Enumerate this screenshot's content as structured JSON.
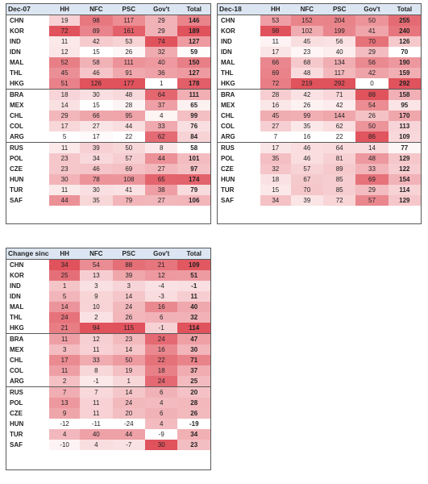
{
  "colors": {
    "header_bg": "#dce6f2",
    "heat_low": "#ffffff",
    "heat_high": "#e0525c",
    "border": "#5a5a5a"
  },
  "tables": [
    {
      "id": "dec07",
      "title": "Dec-07",
      "columns": [
        "HH",
        "NFC",
        "PSC",
        "Gov't",
        "Total"
      ],
      "groups": [
        [
          {
            "country": "CHN",
            "values": [
              19,
              98,
              117,
              29,
              146
            ]
          },
          {
            "country": "KOR",
            "values": [
              72,
              89,
              161,
              29,
              189
            ]
          },
          {
            "country": "IND",
            "values": [
              11,
              42,
              53,
              74,
              127
            ]
          },
          {
            "country": "IDN",
            "values": [
              12,
              15,
              26,
              32,
              59
            ]
          },
          {
            "country": "MAL",
            "values": [
              52,
              58,
              111,
              40,
              150
            ]
          },
          {
            "country": "THL",
            "values": [
              45,
              46,
              91,
              36,
              127
            ]
          },
          {
            "country": "HKG",
            "values": [
              51,
              126,
              177,
              1,
              178
            ]
          }
        ],
        [
          {
            "country": "BRA",
            "values": [
              18,
              30,
              48,
              64,
              111
            ]
          },
          {
            "country": "MEX",
            "values": [
              14,
              15,
              28,
              37,
              65
            ]
          },
          {
            "country": "CHL",
            "values": [
              29,
              66,
              95,
              4,
              99
            ]
          },
          {
            "country": "COL",
            "values": [
              17,
              27,
              44,
              33,
              76
            ]
          },
          {
            "country": "ARG",
            "values": [
              5,
              17,
              22,
              62,
              84
            ]
          }
        ],
        [
          {
            "country": "RUS",
            "values": [
              11,
              39,
              50,
              8,
              58
            ]
          },
          {
            "country": "POL",
            "values": [
              23,
              34,
              57,
              44,
              101
            ]
          },
          {
            "country": "CZE",
            "values": [
              23,
              46,
              69,
              27,
              97
            ]
          },
          {
            "country": "HUN",
            "values": [
              30,
              78,
              108,
              65,
              174
            ]
          },
          {
            "country": "TUR",
            "values": [
              11,
              30,
              41,
              38,
              79
            ]
          },
          {
            "country": "SAF",
            "values": [
              44,
              35,
              79,
              27,
              106
            ]
          }
        ]
      ]
    },
    {
      "id": "dec18",
      "title": "Dec-18",
      "columns": [
        "HH",
        "NFC",
        "PSC",
        "Gov't",
        "Total"
      ],
      "groups": [
        [
          {
            "country": "CHN",
            "values": [
              53,
              152,
              204,
              50,
              255
            ]
          },
          {
            "country": "KOR",
            "values": [
              98,
              102,
              199,
              41,
              240
            ]
          },
          {
            "country": "IND",
            "values": [
              11,
              45,
              56,
              70,
              126
            ]
          },
          {
            "country": "IDN",
            "values": [
              17,
              23,
              40,
              29,
              70
            ]
          },
          {
            "country": "MAL",
            "values": [
              66,
              68,
              134,
              56,
              190
            ]
          },
          {
            "country": "THL",
            "values": [
              69,
              48,
              117,
              42,
              159
            ]
          },
          {
            "country": "HKG",
            "values": [
              72,
              219,
              292,
              0,
              292
            ]
          }
        ],
        [
          {
            "country": "BRA",
            "values": [
              28,
              42,
              71,
              88,
              158
            ]
          },
          {
            "country": "MEX",
            "values": [
              16,
              26,
              42,
              54,
              95
            ]
          },
          {
            "country": "CHL",
            "values": [
              45,
              99,
              144,
              26,
              170
            ]
          },
          {
            "country": "COL",
            "values": [
              27,
              35,
              62,
              50,
              113
            ]
          },
          {
            "country": "ARG",
            "values": [
              7,
              16,
              22,
              86,
              109
            ]
          }
        ],
        [
          {
            "country": "RUS",
            "values": [
              17,
              46,
              64,
              14,
              77
            ]
          },
          {
            "country": "POL",
            "values": [
              35,
              46,
              81,
              48,
              129
            ]
          },
          {
            "country": "CZE",
            "values": [
              32,
              57,
              89,
              33,
              122
            ]
          },
          {
            "country": "HUN",
            "values": [
              18,
              67,
              85,
              69,
              154
            ]
          },
          {
            "country": "TUR",
            "values": [
              15,
              70,
              85,
              29,
              114
            ]
          },
          {
            "country": "SAF",
            "values": [
              34,
              39,
              72,
              57,
              129
            ]
          }
        ]
      ]
    },
    {
      "id": "change",
      "title": "Change since Dec-07",
      "columns": [
        "HH",
        "NFC",
        "PSC",
        "Gov't",
        "Total"
      ],
      "groups": [
        [
          {
            "country": "CHN",
            "values": [
              34,
              54,
              88,
              21,
              109
            ]
          },
          {
            "country": "KOR",
            "values": [
              25,
              13,
              39,
              12,
              51
            ]
          },
          {
            "country": "IND",
            "values": [
              1,
              3,
              3,
              -4,
              -1
            ]
          },
          {
            "country": "IDN",
            "values": [
              5,
              9,
              14,
              -3,
              11
            ]
          },
          {
            "country": "MAL",
            "values": [
              14,
              10,
              24,
              16,
              40
            ]
          },
          {
            "country": "THL",
            "values": [
              24,
              2,
              26,
              6,
              32
            ]
          },
          {
            "country": "HKG",
            "values": [
              21,
              94,
              115,
              -1,
              114
            ]
          }
        ],
        [
          {
            "country": "BRA",
            "values": [
              11,
              12,
              23,
              24,
              47
            ]
          },
          {
            "country": "MEX",
            "values": [
              3,
              11,
              14,
              16,
              30
            ]
          },
          {
            "country": "CHL",
            "values": [
              17,
              33,
              50,
              22,
              71
            ]
          },
          {
            "country": "COL",
            "values": [
              11,
              8,
              19,
              18,
              37
            ]
          },
          {
            "country": "ARG",
            "values": [
              2,
              -1,
              1,
              24,
              25
            ]
          }
        ],
        [
          {
            "country": "RUS",
            "values": [
              7,
              7,
              14,
              6,
              20
            ]
          },
          {
            "country": "POL",
            "values": [
              13,
              11,
              24,
              4,
              28
            ]
          },
          {
            "country": "CZE",
            "values": [
              9,
              11,
              20,
              6,
              26
            ]
          },
          {
            "country": "HUN",
            "values": [
              -12,
              -11,
              -24,
              4,
              -19
            ]
          },
          {
            "country": "TUR",
            "values": [
              4,
              40,
              44,
              -9,
              34
            ]
          },
          {
            "country": "SAF",
            "values": [
              -10,
              4,
              -7,
              30,
              23
            ]
          }
        ]
      ]
    }
  ]
}
